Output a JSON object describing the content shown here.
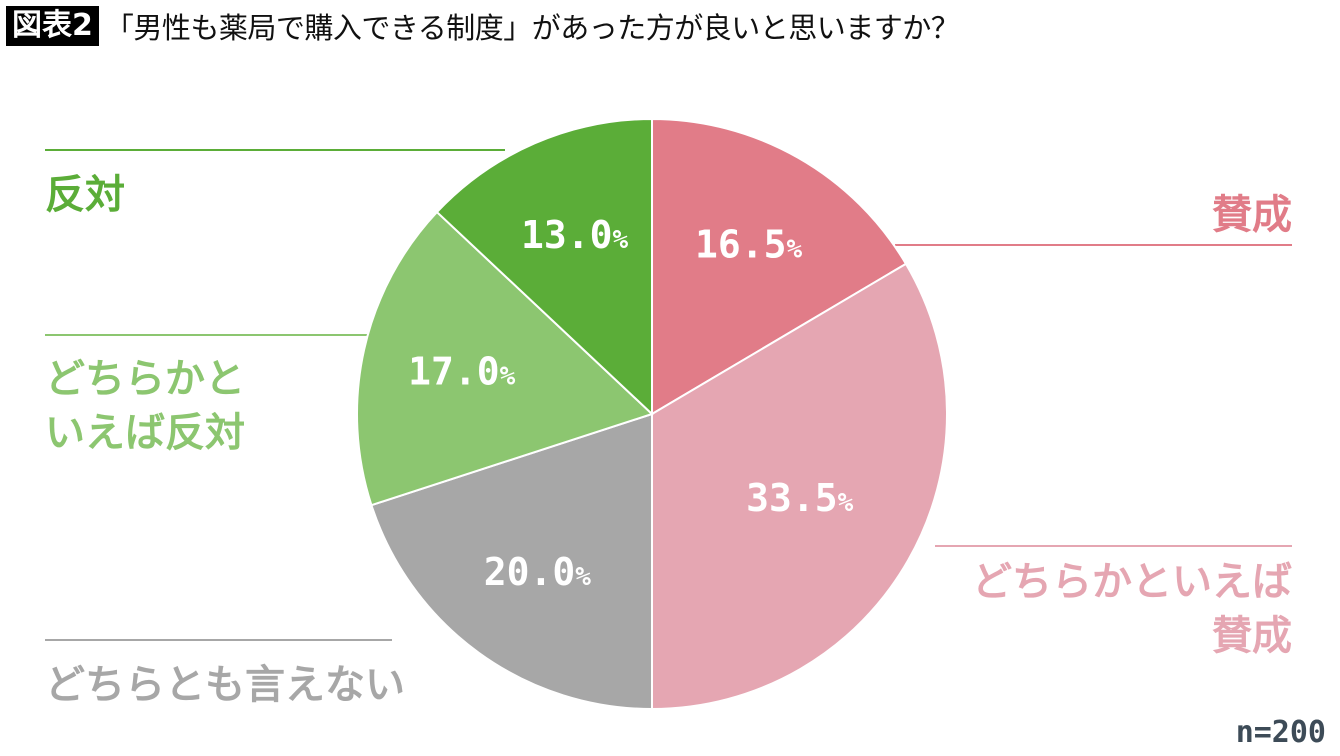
{
  "header": {
    "figure_label": "図表2",
    "title": "「男性も薬局で購入できる制度」があった方が良いと思いますか？"
  },
  "chart_data": {
    "type": "pie",
    "title": "「男性も薬局で購入できる制度」があった方が良いと思いますか？",
    "start": "top",
    "direction": "clockwise",
    "slices": [
      {
        "label": "賛成",
        "value": 16.5,
        "value_label": "16.5",
        "color": "#e17c88"
      },
      {
        "label": "どちらかといえば賛成",
        "label_lines": [
          "どちらかといえば",
          "賛成"
        ],
        "value": 33.5,
        "value_label": "33.5",
        "color": "#e5a6b2"
      },
      {
        "label": "どちらとも言えない",
        "value": 20.0,
        "value_label": "20.0",
        "color": "#a7a7a7"
      },
      {
        "label": "どちらかといえば反対",
        "label_lines": [
          "どちらかと",
          "いえば反対"
        ],
        "value": 17.0,
        "value_label": "17.0",
        "color": "#8cc670"
      },
      {
        "label": "反対",
        "value": 13.0,
        "value_label": "13.0",
        "color": "#5bad38"
      }
    ],
    "unit": "%",
    "sample_size": "n=200"
  }
}
